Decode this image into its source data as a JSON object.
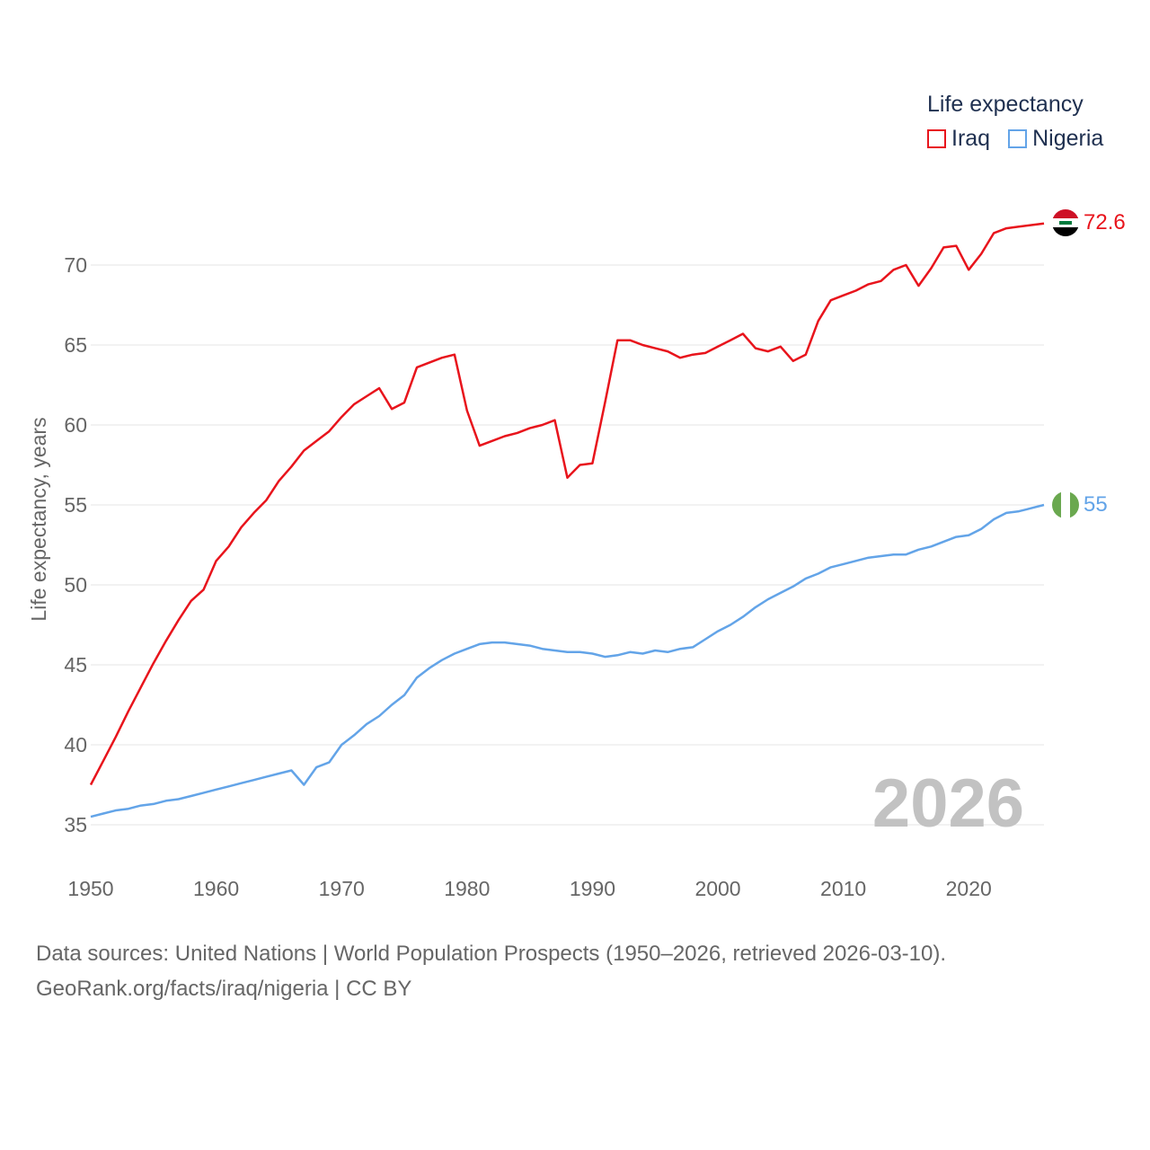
{
  "legend": {
    "title": "Life expectancy",
    "items": [
      {
        "label": "Iraq",
        "color": "#e8141c"
      },
      {
        "label": "Nigeria",
        "color": "#63a4e8"
      }
    ]
  },
  "chart_data": {
    "type": "line",
    "title": "Life expectancy",
    "xlabel": "",
    "ylabel": "Life expectancy, years",
    "xlim": [
      1950,
      2026
    ],
    "ylim": [
      33,
      73
    ],
    "yticks": [
      35,
      40,
      45,
      50,
      55,
      60,
      65,
      70
    ],
    "xticks": [
      1950,
      1960,
      1970,
      1980,
      1990,
      2000,
      2010,
      2020
    ],
    "grid": true,
    "year_watermark": "2026",
    "x": [
      1950,
      1951,
      1952,
      1953,
      1954,
      1955,
      1956,
      1957,
      1958,
      1959,
      1960,
      1961,
      1962,
      1963,
      1964,
      1965,
      1966,
      1967,
      1968,
      1969,
      1970,
      1971,
      1972,
      1973,
      1974,
      1975,
      1976,
      1977,
      1978,
      1979,
      1980,
      1981,
      1982,
      1983,
      1984,
      1985,
      1986,
      1987,
      1988,
      1989,
      1990,
      1991,
      1992,
      1993,
      1994,
      1995,
      1996,
      1997,
      1998,
      1999,
      2000,
      2001,
      2002,
      2003,
      2004,
      2005,
      2006,
      2007,
      2008,
      2009,
      2010,
      2011,
      2012,
      2013,
      2014,
      2015,
      2016,
      2017,
      2018,
      2019,
      2020,
      2021,
      2022,
      2023,
      2024,
      2025,
      2026
    ],
    "series": [
      {
        "name": "Iraq",
        "color": "#e8141c",
        "end_label": "72.6",
        "values": [
          37.5,
          39.0,
          40.5,
          42.1,
          43.6,
          45.1,
          46.5,
          47.8,
          49.0,
          49.7,
          51.5,
          52.4,
          53.6,
          54.5,
          55.3,
          56.5,
          57.4,
          58.4,
          59.0,
          59.6,
          60.5,
          61.3,
          61.8,
          62.3,
          61.0,
          61.4,
          63.6,
          63.9,
          64.2,
          64.4,
          60.9,
          58.7,
          59.0,
          59.3,
          59.5,
          59.8,
          60.0,
          60.3,
          56.7,
          57.5,
          57.6,
          61.4,
          65.3,
          65.3,
          65.0,
          64.8,
          64.6,
          64.2,
          64.4,
          64.5,
          64.9,
          65.3,
          65.7,
          64.8,
          64.6,
          64.9,
          64.0,
          64.4,
          66.5,
          67.8,
          68.1,
          68.4,
          68.8,
          69.0,
          69.7,
          70.0,
          68.7,
          69.8,
          71.1,
          71.2,
          69.7,
          70.7,
          72.0,
          72.3,
          72.4,
          72.5,
          72.6
        ]
      },
      {
        "name": "Nigeria",
        "color": "#63a4e8",
        "end_label": "55",
        "values": [
          35.5,
          35.7,
          35.9,
          36.0,
          36.2,
          36.3,
          36.5,
          36.6,
          36.8,
          37.0,
          37.2,
          37.4,
          37.6,
          37.8,
          38.0,
          38.2,
          38.4,
          37.5,
          38.6,
          38.9,
          40.0,
          40.6,
          41.3,
          41.8,
          42.5,
          43.1,
          44.2,
          44.8,
          45.3,
          45.7,
          46.0,
          46.3,
          46.4,
          46.4,
          46.3,
          46.2,
          46.0,
          45.9,
          45.8,
          45.8,
          45.7,
          45.5,
          45.6,
          45.8,
          45.7,
          45.9,
          45.8,
          46.0,
          46.1,
          46.6,
          47.1,
          47.5,
          48.0,
          48.6,
          49.1,
          49.5,
          49.9,
          50.4,
          50.7,
          51.1,
          51.3,
          51.5,
          51.7,
          51.8,
          51.9,
          51.9,
          52.2,
          52.4,
          52.7,
          53.0,
          53.1,
          53.5,
          54.1,
          54.5,
          54.6,
          54.8,
          55.0
        ]
      }
    ]
  },
  "sources": {
    "line1": "Data sources: United Nations | World Population Prospects (1950–2026, retrieved 2026-03-10).",
    "line2": "GeoRank.org/facts/iraq/nigeria | CC BY"
  }
}
